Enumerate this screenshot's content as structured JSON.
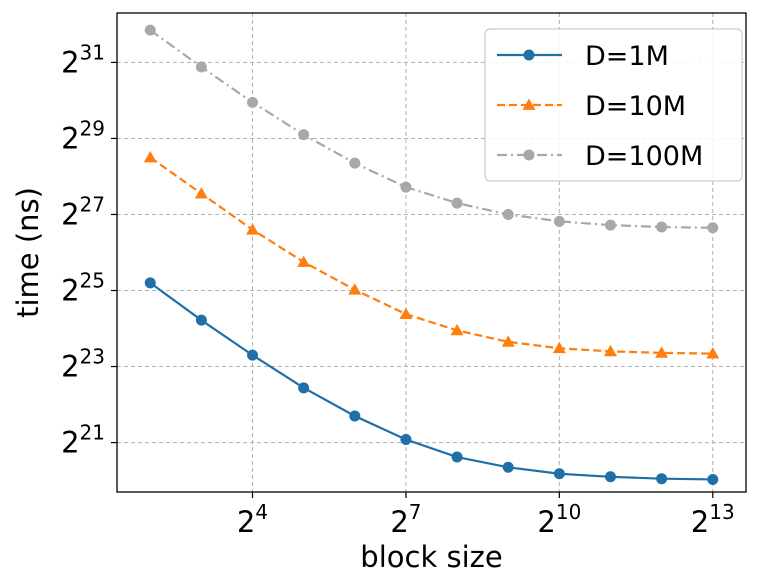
{
  "chart_data": {
    "type": "line",
    "title": "",
    "xlabel": "block size",
    "ylabel": "time (ns)",
    "x_scale": "log2",
    "y_scale": "log2",
    "x_exponents": [
      2,
      3,
      4,
      5,
      6,
      7,
      8,
      9,
      10,
      11,
      12,
      13
    ],
    "x_ticks": [
      {
        "base": "2",
        "exp": "4",
        "value": 4
      },
      {
        "base": "2",
        "exp": "7",
        "value": 7
      },
      {
        "base": "2",
        "exp": "10",
        "value": 10
      },
      {
        "base": "2",
        "exp": "13",
        "value": 13
      }
    ],
    "y_ticks": [
      {
        "base": "2",
        "exp": "21",
        "value": 21
      },
      {
        "base": "2",
        "exp": "23",
        "value": 23
      },
      {
        "base": "2",
        "exp": "25",
        "value": 25
      },
      {
        "base": "2",
        "exp": "27",
        "value": 27
      },
      {
        "base": "2",
        "exp": "29",
        "value": 29
      },
      {
        "base": "2",
        "exp": "31",
        "value": 31
      }
    ],
    "xlim_exp": [
      1.35,
      13.65
    ],
    "ylim_exp": [
      19.7,
      32.3
    ],
    "grid": true,
    "legend_position": "top-right",
    "series": [
      {
        "name": "D=1M",
        "color": "#1f6fa8",
        "marker": "circle",
        "dash": "solid",
        "values_exp": [
          25.2,
          24.22,
          23.3,
          22.44,
          21.7,
          21.08,
          20.62,
          20.35,
          20.18,
          20.1,
          20.05,
          20.03
        ]
      },
      {
        "name": "D=10M",
        "color": "#ff7f0e",
        "marker": "triangle",
        "dash": "dashed",
        "values_exp": [
          28.5,
          27.55,
          26.6,
          25.75,
          25.02,
          24.38,
          23.95,
          23.65,
          23.48,
          23.4,
          23.36,
          23.34
        ]
      },
      {
        "name": "D=100M",
        "color": "#a8a8a8",
        "marker": "circle",
        "dash": "dashdot",
        "values_exp": [
          31.85,
          30.88,
          29.95,
          29.1,
          28.35,
          27.72,
          27.3,
          27.0,
          26.82,
          26.72,
          26.67,
          26.65
        ]
      }
    ]
  }
}
